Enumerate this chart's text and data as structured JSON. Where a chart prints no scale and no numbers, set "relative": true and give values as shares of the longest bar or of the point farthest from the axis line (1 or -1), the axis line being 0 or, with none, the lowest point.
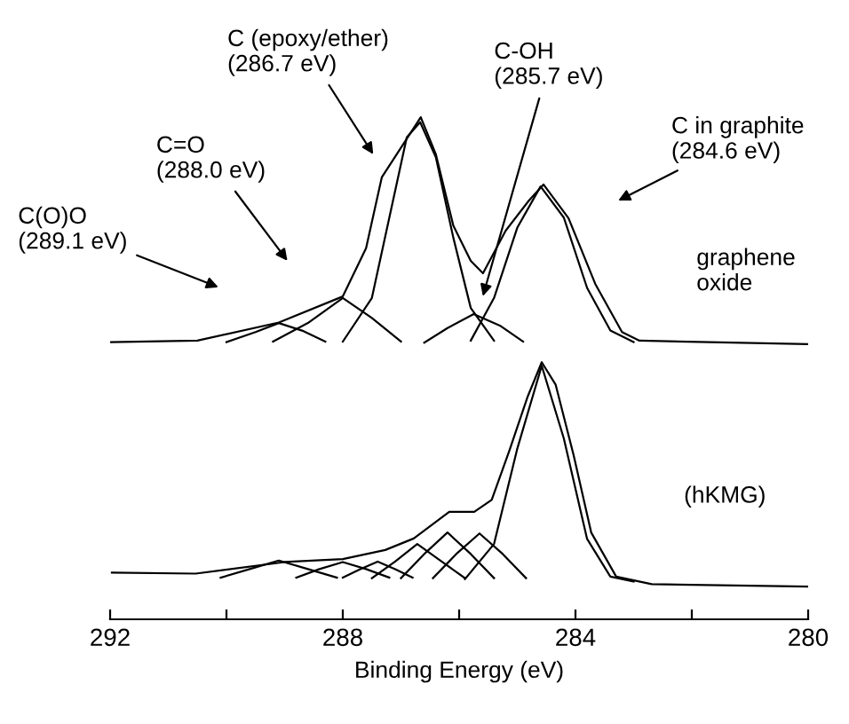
{
  "chart_data": {
    "type": "line",
    "relative": true,
    "xlabel": "Binding Energy (eV)",
    "xlim": [
      292,
      280
    ],
    "xticks": [
      292,
      {
        "value": 290,
        "label": null
      },
      288,
      {
        "value": 286,
        "label": null
      },
      284,
      {
        "value": 282,
        "label": null
      },
      280
    ],
    "grid": false,
    "legend": false,
    "marker": "none",
    "line_style": "solid",
    "series": [
      {
        "color": "#000000",
        "x": [
          292,
          290.5,
          289.1,
          288.0,
          287.6,
          287.33,
          286.66,
          286.4,
          286.1,
          285.8,
          285.59,
          285.2,
          284.8,
          284.55,
          284.12,
          283.66,
          283.2,
          282.9,
          280
        ],
        "values": [
          0.552,
          0.555,
          0.591,
          0.643,
          0.739,
          0.88,
          1.0,
          0.926,
          0.784,
          0.714,
          0.689,
          0.774,
          0.834,
          0.866,
          0.799,
          0.668,
          0.572,
          0.555,
          0.548
        ]
      },
      {
        "color": "#000000",
        "x": [
          290.0,
          289.5,
          289.1,
          288.7,
          288.3
        ],
        "values": [
          0.552,
          0.572,
          0.59,
          0.575,
          0.553
        ]
      },
      {
        "color": "#000000",
        "x": [
          289.2,
          288.6,
          288.0,
          287.5,
          287.0
        ],
        "values": [
          0.553,
          0.59,
          0.64,
          0.6,
          0.553
        ]
      },
      {
        "color": "#000000",
        "x": [
          288.0,
          287.5,
          287.2,
          286.9,
          286.67,
          286.4,
          286.1,
          285.8,
          285.4
        ],
        "values": [
          0.553,
          0.64,
          0.8,
          0.96,
          0.99,
          0.92,
          0.76,
          0.62,
          0.555
        ]
      },
      {
        "color": "#000000",
        "x": [
          286.6,
          286.2,
          285.75,
          285.3,
          284.9
        ],
        "values": [
          0.551,
          0.58,
          0.608,
          0.585,
          0.553
        ]
      },
      {
        "color": "#000000",
        "x": [
          285.8,
          285.4,
          285.0,
          284.6,
          284.2,
          283.8,
          283.4,
          283.0
        ],
        "values": [
          0.555,
          0.64,
          0.78,
          0.862,
          0.8,
          0.66,
          0.575,
          0.552
        ]
      },
      {
        "color": "#000000",
        "x": [
          291.97,
          290.53,
          289.0,
          288.0,
          287.27,
          286.78,
          286.17,
          285.74,
          285.44,
          285.13,
          284.82,
          284.58,
          284.34,
          284.03,
          283.73,
          283.3,
          282.69,
          280
        ],
        "values": [
          0.093,
          0.091,
          0.114,
          0.12,
          0.138,
          0.161,
          0.214,
          0.214,
          0.238,
          0.338,
          0.444,
          0.512,
          0.467,
          0.326,
          0.173,
          0.085,
          0.07,
          0.065
        ]
      },
      {
        "color": "#000000",
        "x": [
          290.1,
          289.6,
          289.1,
          288.6,
          288.1
        ],
        "values": [
          0.083,
          0.1,
          0.117,
          0.1,
          0.083
        ]
      },
      {
        "color": "#000000",
        "x": [
          288.8,
          288.4,
          288.0,
          287.6,
          287.2
        ],
        "values": [
          0.083,
          0.1,
          0.114,
          0.1,
          0.083
        ]
      },
      {
        "color": "#000000",
        "x": [
          288.0,
          287.7,
          287.4,
          287.1,
          286.8
        ],
        "values": [
          0.083,
          0.1,
          0.115,
          0.1,
          0.083
        ]
      },
      {
        "color": "#000000",
        "x": [
          287.5,
          287.1,
          286.72,
          286.3,
          285.9
        ],
        "values": [
          0.082,
          0.115,
          0.15,
          0.115,
          0.082
        ]
      },
      {
        "color": "#000000",
        "x": [
          287.0,
          286.6,
          286.2,
          285.8,
          285.4
        ],
        "values": [
          0.082,
          0.13,
          0.173,
          0.13,
          0.082
        ]
      },
      {
        "color": "#000000",
        "x": [
          286.45,
          286.05,
          285.65,
          285.25,
          284.85
        ],
        "values": [
          0.082,
          0.13,
          0.171,
          0.13,
          0.082
        ]
      },
      {
        "color": "#000000",
        "x": [
          285.9,
          285.4,
          285.0,
          284.58,
          284.2,
          283.8,
          283.4,
          283.0
        ],
        "values": [
          0.08,
          0.15,
          0.34,
          0.505,
          0.36,
          0.16,
          0.085,
          0.075
        ]
      }
    ],
    "annotations": [
      "C(O)O\n(289.1 eV)",
      "C=O\n(288.0 eV)",
      "C (epoxy/ether)\n(286.7 eV)",
      "C-OH\n(285.7 eV)",
      "C in graphite\n(284.6 eV)",
      "graphene\noxide",
      "(hKMG)"
    ]
  }
}
